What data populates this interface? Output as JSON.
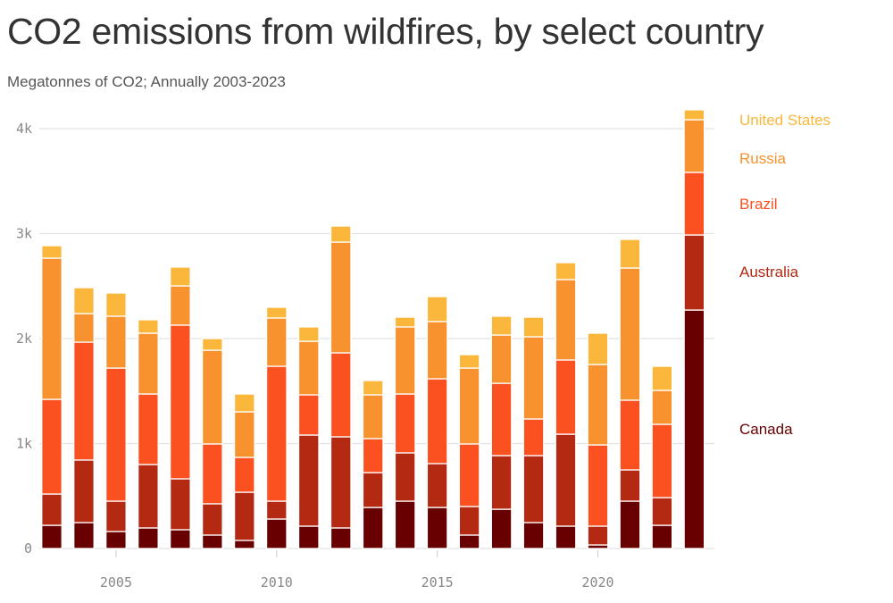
{
  "chart_data": {
    "type": "bar",
    "stacked": true,
    "title": "CO2 emissions from wildfires, by select country",
    "subtitle": "Megatonnes of CO2; Annually 2003-2023",
    "xlabel": "",
    "ylabel": "",
    "ylim": [
      0,
      4200
    ],
    "grid": true,
    "legend_placement": "right, labels beside last bar",
    "categories": [
      2003,
      2004,
      2005,
      2006,
      2007,
      2008,
      2009,
      2010,
      2011,
      2012,
      2013,
      2014,
      2015,
      2016,
      2017,
      2018,
      2019,
      2020,
      2021,
      2022,
      2023
    ],
    "x_ticks": [
      {
        "value": 2005,
        "label": "2005"
      },
      {
        "value": 2010,
        "label": "2010"
      },
      {
        "value": 2015,
        "label": "2015"
      },
      {
        "value": 2020,
        "label": "2020"
      }
    ],
    "y_ticks": [
      {
        "value": 0,
        "label": "0"
      },
      {
        "value": 1000,
        "label": "1k"
      },
      {
        "value": 2000,
        "label": "2k"
      },
      {
        "value": 3000,
        "label": "3k"
      },
      {
        "value": 4000,
        "label": "4k"
      }
    ],
    "series": [
      {
        "name": "Canada",
        "color": "#680001",
        "values": [
          221,
          247,
          162,
          196,
          179,
          128,
          77,
          281,
          213,
          196,
          391,
          451,
          391,
          128,
          374,
          247,
          213,
          34,
          451,
          221,
          2272
        ]
      },
      {
        "name": "Australia",
        "color": "#b42912",
        "values": [
          298,
          596,
          289,
          604,
          485,
          298,
          459,
          170,
          868,
          868,
          332,
          460,
          418,
          272,
          511,
          638,
          876,
          179,
          298,
          264,
          715
        ]
      },
      {
        "name": "Brazil",
        "color": "#fb5120",
        "values": [
          902,
          1123,
          1268,
          672,
          1464,
          570,
          332,
          1285,
          383,
          800,
          324,
          561,
          808,
          596,
          689,
          349,
          707,
          774,
          664,
          698,
          596
        ]
      },
      {
        "name": "Russia",
        "color": "#f7922e",
        "values": [
          1345,
          272,
          494,
          579,
          374,
          893,
          434,
          460,
          510,
          1055,
          417,
          639,
          545,
          723,
          460,
          783,
          766,
          766,
          1259,
          323,
          502
        ]
      },
      {
        "name": "United States",
        "color": "#fbb73c",
        "values": [
          119,
          247,
          221,
          128,
          179,
          111,
          170,
          102,
          137,
          153,
          136,
          93,
          238,
          128,
          179,
          187,
          161,
          298,
          273,
          230,
          94
        ]
      }
    ]
  }
}
